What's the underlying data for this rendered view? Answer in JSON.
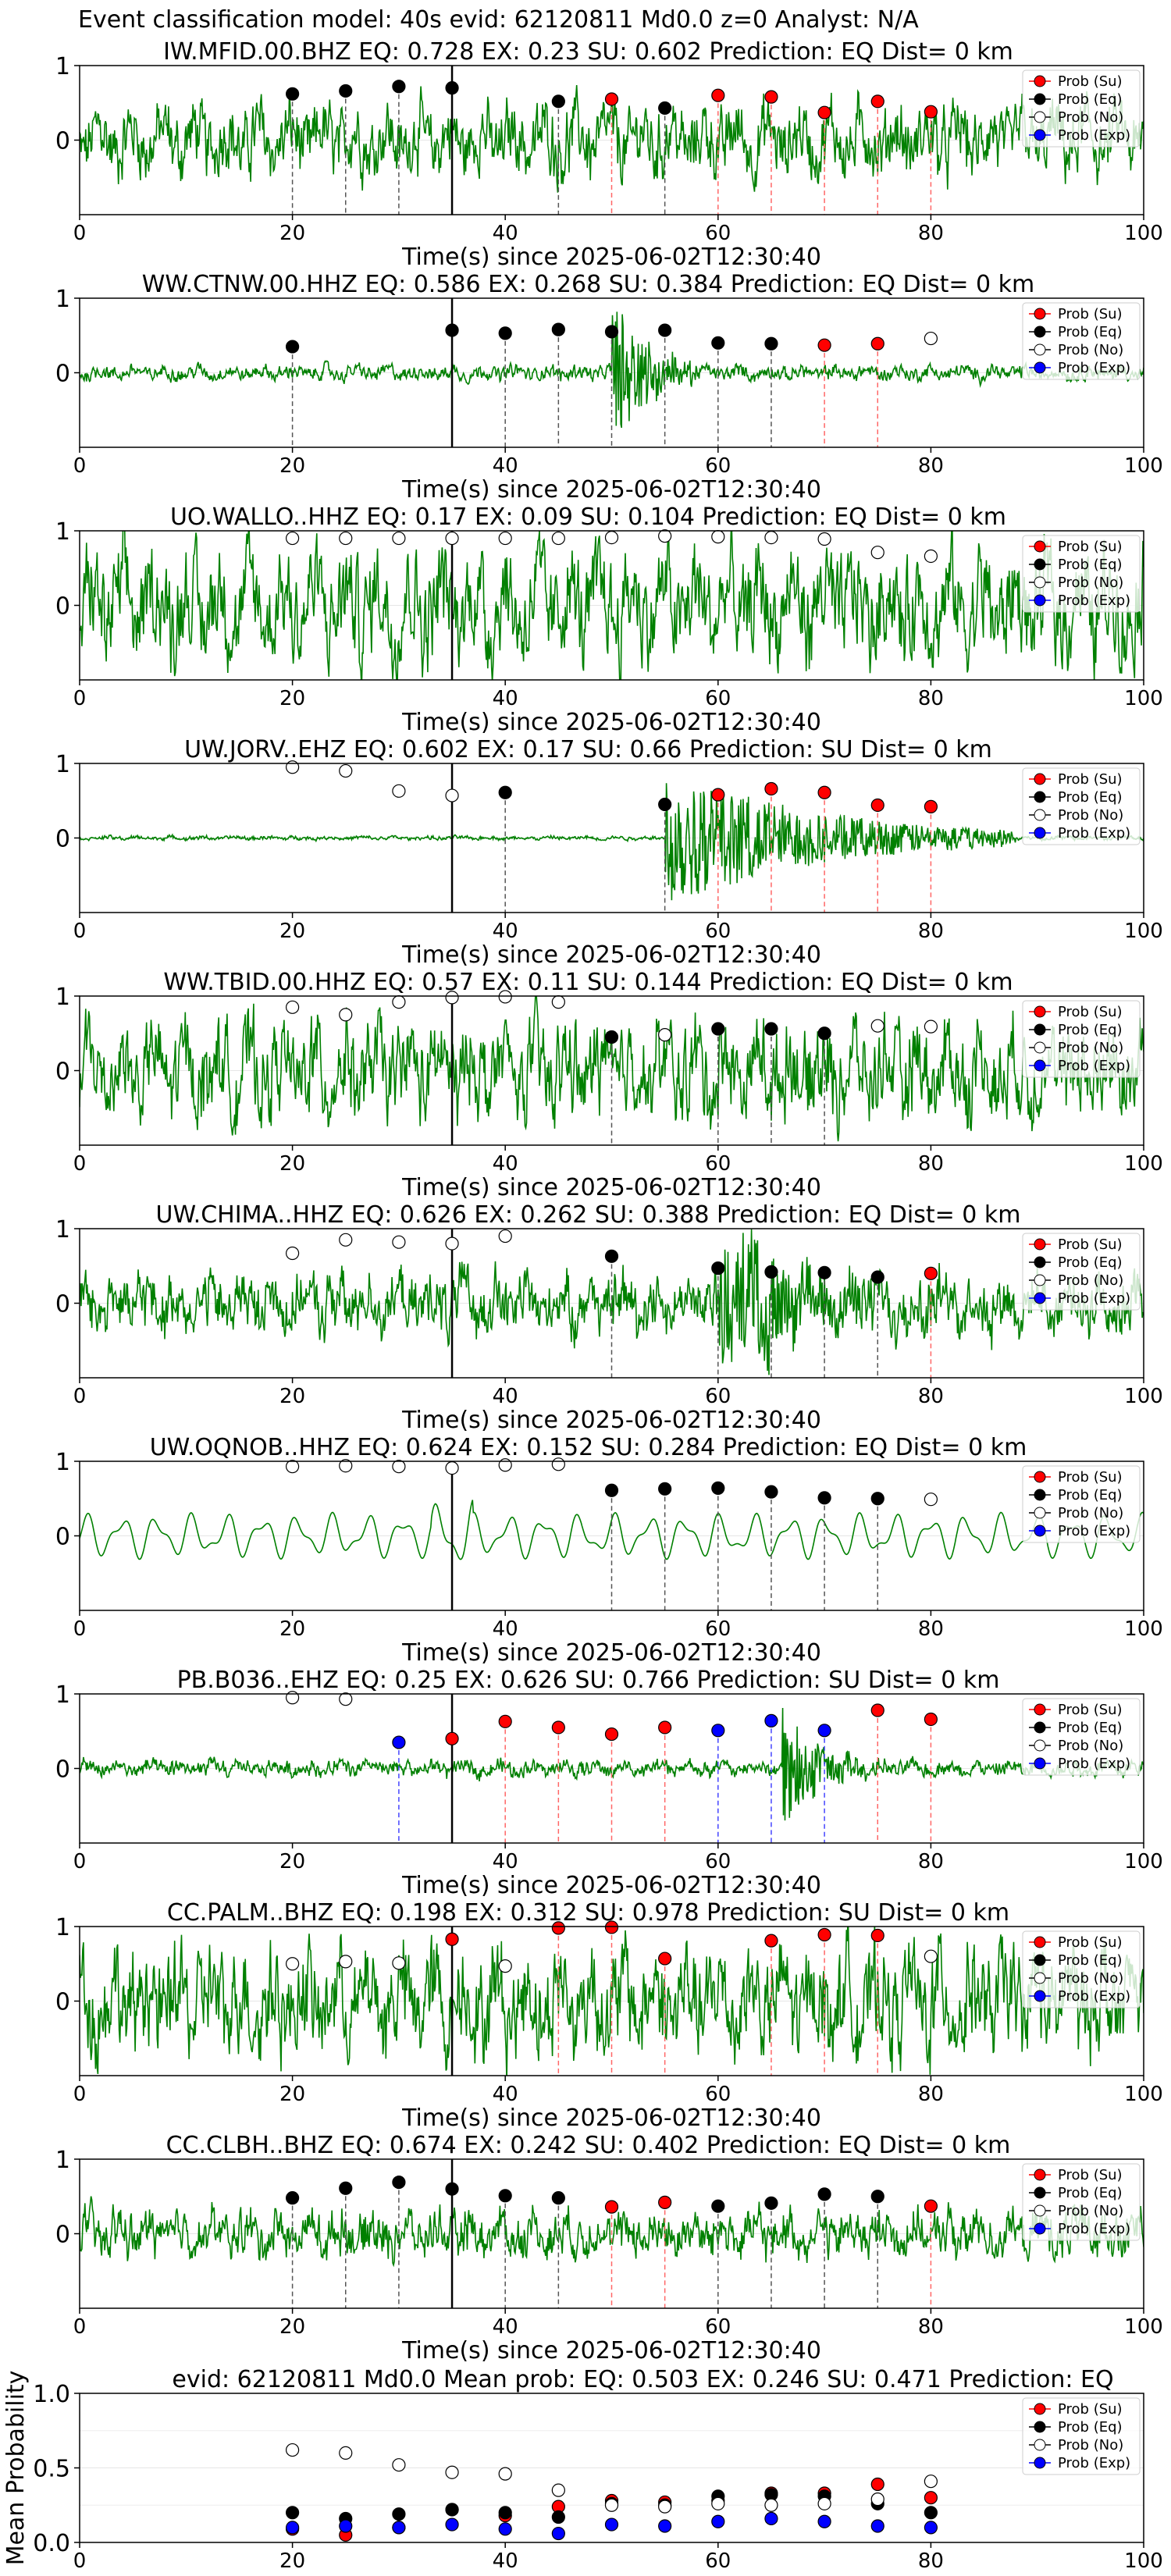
{
  "suptitle": "Event classification model: 40s evid: 62120811 Md0.0 z=0 Analyst: N/A",
  "colors": {
    "su": "#ff0000",
    "eq": "#000000",
    "no": "#ffffff",
    "exp": "#0000ff",
    "wave": "#008000",
    "origin": "#000000"
  },
  "legend": [
    "Prob (Su)",
    "Prob (Eq)",
    "Prob (No)",
    "Prob (Exp)"
  ],
  "chart_data": [
    {
      "type": "line",
      "station": "IW.MFID.00.BHZ",
      "title": "IW.MFID.00.BHZ   EQ: 0.728  EX: 0.23  SU: 0.602   Prediction: EQ    Dist= 0 km",
      "xlabel": "Time(s) since 2025-06-02T12:30:40",
      "xlim": [
        0,
        100
      ],
      "ylim": [
        -1,
        1
      ],
      "xticks": [
        0,
        20,
        40,
        60,
        80,
        100
      ],
      "yticks": [
        1,
        0
      ],
      "amp": 0.55,
      "noise": 0.28,
      "burst": [],
      "points": [
        {
          "t": 20,
          "c": "eq",
          "v": 0.62
        },
        {
          "t": 25,
          "c": "eq",
          "v": 0.66
        },
        {
          "t": 30,
          "c": "eq",
          "v": 0.72
        },
        {
          "t": 35,
          "c": "eq",
          "v": 0.7
        },
        {
          "t": 45,
          "c": "eq",
          "v": 0.52
        },
        {
          "t": 50,
          "c": "su",
          "v": 0.55
        },
        {
          "t": 55,
          "c": "eq",
          "v": 0.43
        },
        {
          "t": 60,
          "c": "su",
          "v": 0.6
        },
        {
          "t": 65,
          "c": "su",
          "v": 0.58
        },
        {
          "t": 70,
          "c": "su",
          "v": 0.37
        },
        {
          "t": 75,
          "c": "su",
          "v": 0.52
        },
        {
          "t": 80,
          "c": "su",
          "v": 0.38
        }
      ]
    },
    {
      "type": "line",
      "station": "WW.CTNW.00.HHZ",
      "title": "WW.CTNW.00.HHZ   EQ: 0.586  EX: 0.268  SU: 0.384   Prediction: EQ    Dist= 0 km",
      "xlabel": "Time(s) since 2025-06-02T12:30:40",
      "xlim": [
        0,
        100
      ],
      "ylim": [
        -1,
        1
      ],
      "xticks": [
        0,
        20,
        40,
        60,
        80,
        100
      ],
      "yticks": [
        1,
        0
      ],
      "amp": 0.12,
      "noise": 0.05,
      "burst": [
        50,
        58,
        1.0
      ],
      "points": [
        {
          "t": 20,
          "c": "eq",
          "v": 0.35
        },
        {
          "t": 35,
          "c": "eq",
          "v": 0.57
        },
        {
          "t": 40,
          "c": "eq",
          "v": 0.53
        },
        {
          "t": 45,
          "c": "eq",
          "v": 0.58
        },
        {
          "t": 50,
          "c": "eq",
          "v": 0.55
        },
        {
          "t": 55,
          "c": "eq",
          "v": 0.57
        },
        {
          "t": 60,
          "c": "eq",
          "v": 0.4
        },
        {
          "t": 65,
          "c": "eq",
          "v": 0.39
        },
        {
          "t": 70,
          "c": "su",
          "v": 0.37
        },
        {
          "t": 75,
          "c": "su",
          "v": 0.39
        },
        {
          "t": 80,
          "c": "no",
          "v": 0.46
        }
      ]
    },
    {
      "type": "line",
      "station": "UO.WALLO..HHZ",
      "title": "UO.WALLO..HHZ   EQ: 0.17  EX: 0.09  SU: 0.104   Prediction: EQ    Dist= 0 km",
      "xlabel": "Time(s) since 2025-06-02T12:30:40",
      "xlim": [
        0,
        100
      ],
      "ylim": [
        -1,
        1
      ],
      "xticks": [
        0,
        20,
        40,
        60,
        80,
        100
      ],
      "yticks": [
        1,
        0
      ],
      "amp": 0.9,
      "noise": 0.2,
      "burst": [],
      "points": [
        {
          "t": 20,
          "c": "no",
          "v": 0.9
        },
        {
          "t": 25,
          "c": "no",
          "v": 0.9
        },
        {
          "t": 30,
          "c": "no",
          "v": 0.9
        },
        {
          "t": 35,
          "c": "no",
          "v": 0.9
        },
        {
          "t": 40,
          "c": "no",
          "v": 0.9
        },
        {
          "t": 45,
          "c": "no",
          "v": 0.9
        },
        {
          "t": 50,
          "c": "no",
          "v": 0.91
        },
        {
          "t": 55,
          "c": "no",
          "v": 0.93
        },
        {
          "t": 60,
          "c": "no",
          "v": 0.92
        },
        {
          "t": 65,
          "c": "no",
          "v": 0.91
        },
        {
          "t": 70,
          "c": "no",
          "v": 0.89
        },
        {
          "t": 75,
          "c": "no",
          "v": 0.71
        },
        {
          "t": 80,
          "c": "no",
          "v": 0.66
        }
      ],
      "vlines": [
        35
      ]
    },
    {
      "type": "line",
      "station": "UW.JORV..EHZ",
      "title": "UW.JORV..EHZ   EQ: 0.602  EX: 0.17  SU: 0.66   Prediction: SU    Dist= 0 km",
      "xlabel": "Time(s) since 2025-06-02T12:30:40",
      "xlim": [
        0,
        100
      ],
      "ylim": [
        -1,
        1
      ],
      "xticks": [
        0,
        20,
        40,
        60,
        80,
        100
      ],
      "yticks": [
        1,
        0
      ],
      "amp": 0.03,
      "noise": 0.02,
      "burst": [
        55,
        88,
        0.95
      ],
      "points": [
        {
          "t": 20,
          "c": "no",
          "v": 0.95
        },
        {
          "t": 25,
          "c": "no",
          "v": 0.9
        },
        {
          "t": 30,
          "c": "no",
          "v": 0.63
        },
        {
          "t": 35,
          "c": "no",
          "v": 0.57
        },
        {
          "t": 40,
          "c": "eq",
          "v": 0.61
        },
        {
          "t": 55,
          "c": "eq",
          "v": 0.45
        },
        {
          "t": 60,
          "c": "su",
          "v": 0.58
        },
        {
          "t": 65,
          "c": "su",
          "v": 0.66
        },
        {
          "t": 70,
          "c": "su",
          "v": 0.61
        },
        {
          "t": 75,
          "c": "su",
          "v": 0.44
        },
        {
          "t": 80,
          "c": "su",
          "v": 0.42
        }
      ]
    },
    {
      "type": "line",
      "station": "WW.TBID.00.HHZ",
      "title": "WW.TBID.00.HHZ   EQ: 0.57  EX: 0.11  SU: 0.144   Prediction: EQ    Dist= 0 km",
      "xlabel": "Time(s) since 2025-06-02T12:30:40",
      "xlim": [
        0,
        100
      ],
      "ylim": [
        -1,
        1
      ],
      "xticks": [
        0,
        20,
        40,
        60,
        80,
        100
      ],
      "yticks": [
        1,
        0
      ],
      "amp": 0.75,
      "noise": 0.3,
      "burst": [],
      "points": [
        {
          "t": 20,
          "c": "no",
          "v": 0.85
        },
        {
          "t": 25,
          "c": "no",
          "v": 0.75
        },
        {
          "t": 30,
          "c": "no",
          "v": 0.92
        },
        {
          "t": 35,
          "c": "no",
          "v": 0.98
        },
        {
          "t": 40,
          "c": "no",
          "v": 0.99
        },
        {
          "t": 45,
          "c": "no",
          "v": 0.92
        },
        {
          "t": 50,
          "c": "eq",
          "v": 0.45
        },
        {
          "t": 55,
          "c": "no",
          "v": 0.48
        },
        {
          "t": 60,
          "c": "eq",
          "v": 0.56
        },
        {
          "t": 65,
          "c": "eq",
          "v": 0.56
        },
        {
          "t": 70,
          "c": "eq",
          "v": 0.5
        },
        {
          "t": 75,
          "c": "no",
          "v": 0.6
        },
        {
          "t": 80,
          "c": "no",
          "v": 0.59
        }
      ]
    },
    {
      "type": "line",
      "station": "UW.CHIMA..HHZ",
      "title": "UW.CHIMA..HHZ   EQ: 0.626  EX: 0.262  SU: 0.388   Prediction: EQ    Dist= 0 km",
      "xlabel": "Time(s) since 2025-06-02T12:30:40",
      "xlim": [
        0,
        100
      ],
      "ylim": [
        -1,
        1
      ],
      "xticks": [
        0,
        20,
        40,
        60,
        80,
        100
      ],
      "yticks": [
        1,
        0
      ],
      "amp": 0.45,
      "noise": 0.25,
      "burst": [
        60,
        82,
        0.85
      ],
      "points": [
        {
          "t": 20,
          "c": "no",
          "v": 0.67
        },
        {
          "t": 25,
          "c": "no",
          "v": 0.85
        },
        {
          "t": 30,
          "c": "no",
          "v": 0.82
        },
        {
          "t": 35,
          "c": "no",
          "v": 0.8
        },
        {
          "t": 40,
          "c": "no",
          "v": 0.9
        },
        {
          "t": 50,
          "c": "eq",
          "v": 0.63
        },
        {
          "t": 60,
          "c": "eq",
          "v": 0.47
        },
        {
          "t": 65,
          "c": "eq",
          "v": 0.42
        },
        {
          "t": 70,
          "c": "eq",
          "v": 0.41
        },
        {
          "t": 75,
          "c": "eq",
          "v": 0.35
        },
        {
          "t": 80,
          "c": "su",
          "v": 0.4
        }
      ]
    },
    {
      "type": "line",
      "station": "UW.OQNOB..HHZ",
      "title": "UW.OQNOB..HHZ   EQ: 0.624  EX: 0.152  SU: 0.284   Prediction: EQ    Dist= 0 km",
      "xlabel": "Time(s) since 2025-06-02T12:30:40",
      "xlim": [
        0,
        100
      ],
      "ylim": [
        -1,
        1
      ],
      "xticks": [
        0,
        20,
        40,
        60,
        80,
        100
      ],
      "yticks": [
        1,
        0
      ],
      "amp": 0.3,
      "noise": 0.0,
      "burst": [],
      "smooth": true,
      "points": [
        {
          "t": 20,
          "c": "no",
          "v": 0.93
        },
        {
          "t": 25,
          "c": "no",
          "v": 0.94
        },
        {
          "t": 30,
          "c": "no",
          "v": 0.93
        },
        {
          "t": 35,
          "c": "no",
          "v": 0.91
        },
        {
          "t": 40,
          "c": "no",
          "v": 0.95
        },
        {
          "t": 45,
          "c": "no",
          "v": 0.96
        },
        {
          "t": 50,
          "c": "eq",
          "v": 0.61
        },
        {
          "t": 55,
          "c": "eq",
          "v": 0.63
        },
        {
          "t": 60,
          "c": "eq",
          "v": 0.64
        },
        {
          "t": 65,
          "c": "eq",
          "v": 0.59
        },
        {
          "t": 70,
          "c": "eq",
          "v": 0.51
        },
        {
          "t": 75,
          "c": "eq",
          "v": 0.5
        },
        {
          "t": 80,
          "c": "no",
          "v": 0.49
        }
      ]
    },
    {
      "type": "line",
      "station": "PB.B036..EHZ",
      "title": "PB.B036..EHZ   EQ: 0.25  EX: 0.626  SU: 0.766   Prediction: SU    Dist= 0 km",
      "xlabel": "Time(s) since 2025-06-02T12:30:40",
      "xlim": [
        0,
        100
      ],
      "ylim": [
        -1,
        1
      ],
      "xticks": [
        0,
        20,
        40,
        60,
        80,
        100
      ],
      "yticks": [
        1,
        0
      ],
      "amp": 0.12,
      "noise": 0.08,
      "burst": [
        66,
        74,
        0.8
      ],
      "points": [
        {
          "t": 20,
          "c": "no",
          "v": 0.95
        },
        {
          "t": 25,
          "c": "no",
          "v": 0.93
        },
        {
          "t": 30,
          "c": "exp",
          "v": 0.35
        },
        {
          "t": 35,
          "c": "su",
          "v": 0.4
        },
        {
          "t": 40,
          "c": "su",
          "v": 0.63
        },
        {
          "t": 45,
          "c": "su",
          "v": 0.55
        },
        {
          "t": 50,
          "c": "su",
          "v": 0.46
        },
        {
          "t": 55,
          "c": "su",
          "v": 0.55
        },
        {
          "t": 60,
          "c": "exp",
          "v": 0.51
        },
        {
          "t": 65,
          "c": "exp",
          "v": 0.64
        },
        {
          "t": 70,
          "c": "exp",
          "v": 0.51
        },
        {
          "t": 75,
          "c": "su",
          "v": 0.78
        },
        {
          "t": 80,
          "c": "su",
          "v": 0.66
        }
      ]
    },
    {
      "type": "line",
      "station": "CC.PALM..BHZ",
      "title": "CC.PALM..BHZ   EQ: 0.198  EX: 0.312  SU: 0.978   Prediction: SU    Dist= 0 km",
      "xlabel": "Time(s) since 2025-06-02T12:30:40",
      "xlim": [
        0,
        100
      ],
      "ylim": [
        -1,
        1
      ],
      "xticks": [
        0,
        20,
        40,
        60,
        80,
        100
      ],
      "yticks": [
        1,
        0
      ],
      "amp": 0.85,
      "noise": 0.35,
      "burst": [],
      "points": [
        {
          "t": 20,
          "c": "no",
          "v": 0.5
        },
        {
          "t": 25,
          "c": "no",
          "v": 0.53
        },
        {
          "t": 30,
          "c": "no",
          "v": 0.51
        },
        {
          "t": 35,
          "c": "su",
          "v": 0.83
        },
        {
          "t": 40,
          "c": "no",
          "v": 0.47
        },
        {
          "t": 45,
          "c": "su",
          "v": 0.98
        },
        {
          "t": 50,
          "c": "su",
          "v": 0.99
        },
        {
          "t": 55,
          "c": "su",
          "v": 0.57
        },
        {
          "t": 65,
          "c": "su",
          "v": 0.81
        },
        {
          "t": 70,
          "c": "su",
          "v": 0.89
        },
        {
          "t": 75,
          "c": "su",
          "v": 0.88
        },
        {
          "t": 80,
          "c": "no",
          "v": 0.6
        }
      ]
    },
    {
      "type": "line",
      "station": "CC.CLBH..BHZ",
      "title": "CC.CLBH..BHZ   EQ: 0.674  EX: 0.242  SU: 0.402   Prediction: EQ    Dist= 0 km",
      "xlabel": "Time(s) since 2025-06-02T12:30:40",
      "xlim": [
        0,
        100
      ],
      "ylim": [
        -1,
        1
      ],
      "xticks": [
        0,
        20,
        40,
        60,
        80,
        100
      ],
      "yticks": [
        1,
        0
      ],
      "amp": 0.35,
      "noise": 0.2,
      "burst": [],
      "points": [
        {
          "t": 20,
          "c": "eq",
          "v": 0.48
        },
        {
          "t": 25,
          "c": "eq",
          "v": 0.61
        },
        {
          "t": 30,
          "c": "eq",
          "v": 0.69
        },
        {
          "t": 35,
          "c": "eq",
          "v": 0.6
        },
        {
          "t": 40,
          "c": "eq",
          "v": 0.51
        },
        {
          "t": 45,
          "c": "eq",
          "v": 0.48
        },
        {
          "t": 50,
          "c": "su",
          "v": 0.36
        },
        {
          "t": 55,
          "c": "su",
          "v": 0.42
        },
        {
          "t": 60,
          "c": "eq",
          "v": 0.37
        },
        {
          "t": 65,
          "c": "eq",
          "v": 0.41
        },
        {
          "t": 70,
          "c": "eq",
          "v": 0.53
        },
        {
          "t": 75,
          "c": "eq",
          "v": 0.5
        },
        {
          "t": 80,
          "c": "su",
          "v": 0.37
        }
      ]
    },
    {
      "type": "scatter",
      "title": "evid: 62120811  Md0.0   Mean prob:   EQ: 0.503  EX: 0.246  SU: 0.471   Prediction: EQ",
      "ylabel": "Mean Probability",
      "xlim": [
        0,
        100
      ],
      "ylim": [
        0,
        1
      ],
      "xticks": [
        0,
        20,
        40,
        60,
        80,
        100
      ],
      "yticks": [
        0.0,
        0.5,
        1.0
      ],
      "series": [
        {
          "name": "Prob (Su)",
          "c": "su",
          "x": [
            20,
            25,
            30,
            35,
            40,
            45,
            50,
            55,
            60,
            65,
            70,
            75,
            80
          ],
          "y": [
            0.09,
            0.05,
            0.1,
            0.22,
            0.18,
            0.24,
            0.28,
            0.27,
            0.28,
            0.33,
            0.33,
            0.39,
            0.3
          ]
        },
        {
          "name": "Prob (Eq)",
          "c": "eq",
          "x": [
            20,
            25,
            30,
            35,
            40,
            45,
            50,
            55,
            60,
            65,
            70,
            75,
            80
          ],
          "y": [
            0.2,
            0.16,
            0.19,
            0.22,
            0.2,
            0.17,
            0.26,
            0.25,
            0.31,
            0.32,
            0.31,
            0.26,
            0.2
          ]
        },
        {
          "name": "Prob (No)",
          "c": "no",
          "x": [
            20,
            25,
            30,
            35,
            40,
            45,
            50,
            55,
            60,
            65,
            70,
            75,
            80
          ],
          "y": [
            0.62,
            0.6,
            0.52,
            0.47,
            0.46,
            0.35,
            0.25,
            0.24,
            0.26,
            0.25,
            0.26,
            0.29,
            0.41
          ]
        },
        {
          "name": "Prob (Exp)",
          "c": "exp",
          "x": [
            20,
            25,
            30,
            35,
            40,
            45,
            50,
            55,
            60,
            65,
            70,
            75,
            80
          ],
          "y": [
            0.1,
            0.11,
            0.1,
            0.12,
            0.09,
            0.06,
            0.12,
            0.11,
            0.14,
            0.16,
            0.14,
            0.11,
            0.1
          ]
        }
      ]
    }
  ]
}
